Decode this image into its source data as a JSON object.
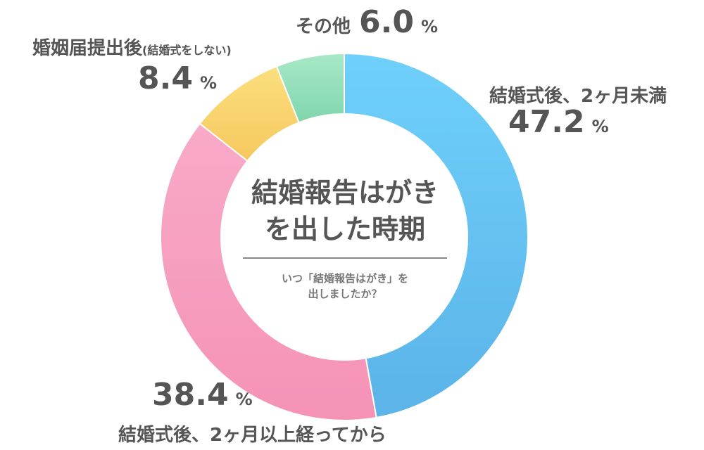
{
  "chart_data": {
    "type": "pie",
    "title": "結婚報告はがきを出した時期",
    "title_lines": [
      "結婚報告はがき",
      "を出した時期"
    ],
    "subtitle_lines": [
      "いつ「結婚報告はがき」を",
      "出しましたか？"
    ],
    "categories": [
      "結婚式後、2ヶ月未満",
      "結婚式後、2ヶ月以上経ってから",
      "婚姻届提出後",
      "その他"
    ],
    "values": [
      47.2,
      38.4,
      8.4,
      6.0
    ],
    "value_labels": [
      "47.2",
      "38.4",
      "8.4",
      "6.0"
    ],
    "unit": "%",
    "extra_notes": {
      "2": "(結婚式をしない)"
    },
    "colors": [
      [
        "#6fd0fa",
        "#5bb3e8"
      ],
      [
        "#f8aac8",
        "#f592b6"
      ],
      [
        "#fbdf7e",
        "#f6c85e"
      ],
      [
        "#a8e8c6",
        "#7fd6ac"
      ]
    ],
    "donut": true,
    "legend": "none"
  }
}
